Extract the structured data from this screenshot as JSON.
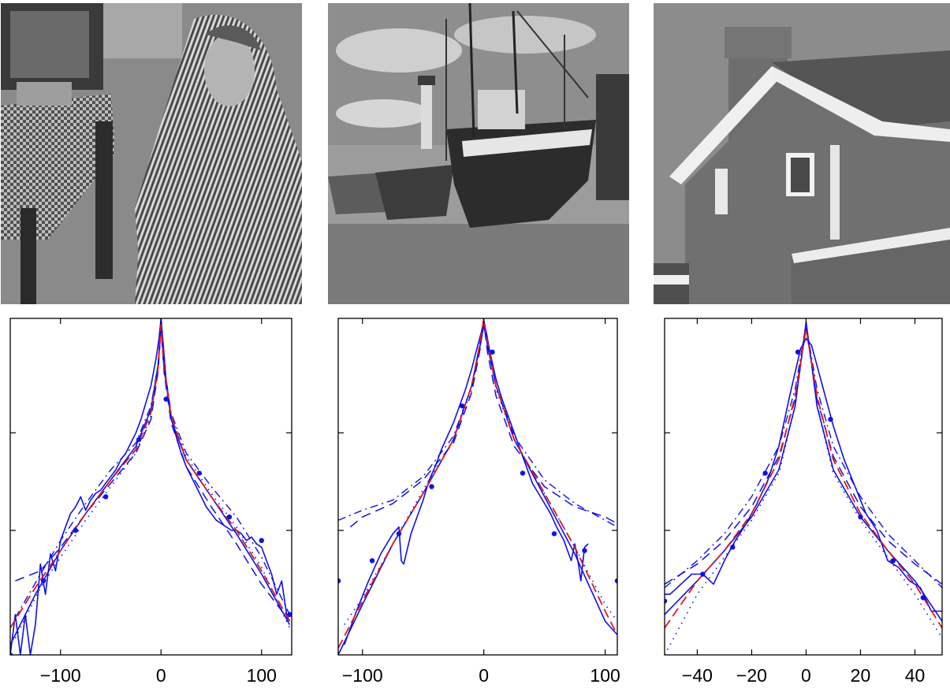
{
  "colors": {
    "solid": "#1010e8",
    "fit": "#e01818",
    "axis": "#000000"
  },
  "images": [
    {
      "subject": "woman seated in a striped scarf and clothing beside a checkered table"
    },
    {
      "subject": "fishing boats beached on a harbor shore with a lighthouse"
    },
    {
      "subject": "corner of a brick house with a chimney and white trim"
    }
  ],
  "chart_data": [
    {
      "type": "line",
      "xlim": [
        -150,
        130
      ],
      "x_ticks": [
        -100,
        0,
        100
      ],
      "x_tick_labels": [
        "−100",
        "0",
        "100"
      ],
      "y_scale": "log",
      "series": [
        {
          "style": "solid",
          "x": [
            -150,
            -145,
            -140,
            -135,
            -130,
            -125,
            -120,
            -115,
            -110,
            -105,
            -100,
            -95,
            -90,
            -85,
            -80,
            -75,
            -70,
            -65,
            -60,
            -55,
            -50,
            -45,
            -40,
            -35,
            -30,
            -25,
            -20,
            -15,
            -10,
            -5,
            -2,
            0,
            2,
            5,
            10,
            15,
            20,
            25,
            30,
            35,
            40,
            45,
            50,
            55,
            60,
            65,
            70,
            75,
            80,
            85,
            90,
            95,
            100,
            105,
            110,
            115,
            120,
            125,
            128
          ],
          "y": [
            0.0,
            0.12,
            0.0,
            0.12,
            0.0,
            0.09,
            0.27,
            0.18,
            0.3,
            0.25,
            0.34,
            0.38,
            0.42,
            0.44,
            0.47,
            0.43,
            0.46,
            0.48,
            0.49,
            0.51,
            0.53,
            0.55,
            0.58,
            0.6,
            0.63,
            0.66,
            0.7,
            0.75,
            0.8,
            0.88,
            0.94,
            1.0,
            0.93,
            0.82,
            0.71,
            0.65,
            0.6,
            0.56,
            0.53,
            0.5,
            0.47,
            0.44,
            0.42,
            0.4,
            0.39,
            0.38,
            0.37,
            0.37,
            0.36,
            0.34,
            0.35,
            0.33,
            0.32,
            0.28,
            0.24,
            0.18,
            0.22,
            0.12,
            0.1
          ]
        },
        {
          "style": "solid",
          "x": [
            -150,
            -125,
            -100,
            -75,
            -50,
            -25,
            -10,
            -3,
            0,
            3,
            10,
            25,
            50,
            75,
            100,
            128
          ],
          "y": [
            0.03,
            0.18,
            0.31,
            0.42,
            0.52,
            0.62,
            0.73,
            0.86,
            0.98,
            0.85,
            0.7,
            0.58,
            0.47,
            0.36,
            0.24,
            0.09
          ]
        },
        {
          "style": "dash",
          "x": [
            -145,
            -120,
            -100,
            -75,
            -50,
            -25,
            -10,
            -3,
            0,
            3,
            10,
            25,
            50,
            75,
            100,
            128
          ],
          "y": [
            0.22,
            0.25,
            0.32,
            0.42,
            0.51,
            0.6,
            0.7,
            0.84,
            0.97,
            0.84,
            0.69,
            0.56,
            0.44,
            0.33,
            0.21,
            0.1
          ]
        },
        {
          "style": "dashdot",
          "x": [
            -145,
            -120,
            -100,
            -75,
            -50,
            -25,
            -10,
            -3,
            0,
            3,
            10,
            25,
            50,
            75,
            100,
            128
          ],
          "y": [
            0.11,
            0.24,
            0.34,
            0.45,
            0.55,
            0.63,
            0.74,
            0.86,
            0.99,
            0.86,
            0.72,
            0.6,
            0.5,
            0.41,
            0.29,
            0.12
          ]
        },
        {
          "style": "dot",
          "x": [
            -145,
            -120,
            -100,
            -75,
            -50,
            -25,
            -10,
            -3,
            0,
            3,
            10,
            25,
            50,
            75,
            100,
            128
          ],
          "y": [
            0.05,
            0.2,
            0.29,
            0.4,
            0.5,
            0.6,
            0.71,
            0.85,
            0.97,
            0.85,
            0.71,
            0.59,
            0.48,
            0.38,
            0.26,
            0.08
          ]
        },
        {
          "style": "fit",
          "x": [
            -150,
            -125,
            -100,
            -75,
            -50,
            -25,
            -10,
            -3,
            0,
            3,
            10,
            25,
            50,
            75,
            100,
            128
          ],
          "y": [
            0.08,
            0.2,
            0.31,
            0.42,
            0.52,
            0.61,
            0.72,
            0.85,
            0.98,
            0.85,
            0.71,
            0.58,
            0.47,
            0.37,
            0.25,
            0.1
          ]
        },
        {
          "style": "markers",
          "x": [
            -150,
            -117,
            -85,
            -55,
            -22,
            5,
            38,
            68,
            100,
            128
          ],
          "y": [
            0.0,
            0.22,
            0.37,
            0.47,
            0.64,
            0.76,
            0.54,
            0.41,
            0.34,
            0.12
          ]
        }
      ]
    },
    {
      "type": "line",
      "xlim": [
        -120,
        110
      ],
      "x_ticks": [
        -100,
        0,
        100
      ],
      "x_tick_labels": [
        "−100",
        "0",
        "100"
      ],
      "y_scale": "log",
      "series": [
        {
          "style": "solid",
          "x": [
            -115,
            -105,
            -95,
            -85,
            -75,
            -70,
            -68,
            -66,
            -60,
            -55,
            -50,
            -45,
            -40,
            -35,
            -30,
            -25,
            -20,
            -15,
            -10,
            -5,
            -2,
            0,
            2,
            5,
            10,
            15,
            20,
            25,
            30,
            35,
            40,
            45,
            50,
            55,
            60,
            63,
            66,
            70,
            72,
            75,
            78,
            80,
            83,
            86
          ],
          "y": [
            0.03,
            0.13,
            0.22,
            0.3,
            0.36,
            0.38,
            0.28,
            0.27,
            0.36,
            0.41,
            0.46,
            0.52,
            0.56,
            0.61,
            0.65,
            0.69,
            0.74,
            0.79,
            0.85,
            0.92,
            0.96,
            0.99,
            0.96,
            0.9,
            0.82,
            0.76,
            0.71,
            0.66,
            0.61,
            0.56,
            0.51,
            0.48,
            0.45,
            0.42,
            0.38,
            0.36,
            0.34,
            0.3,
            0.28,
            0.33,
            0.27,
            0.22,
            0.32,
            0.33
          ]
        },
        {
          "style": "solid",
          "x": [
            -120,
            -100,
            -75,
            -50,
            -25,
            -10,
            -3,
            0,
            3,
            10,
            25,
            50,
            75,
            100,
            110
          ],
          "y": [
            0.0,
            0.15,
            0.33,
            0.48,
            0.64,
            0.8,
            0.92,
            0.98,
            0.92,
            0.8,
            0.64,
            0.47,
            0.3,
            0.1,
            0.06
          ]
        },
        {
          "style": "dash",
          "x": [
            -110,
            -100,
            -75,
            -50,
            -25,
            -10,
            -3,
            0,
            3,
            10,
            25,
            50,
            75,
            100,
            110
          ],
          "y": [
            0.38,
            0.41,
            0.45,
            0.52,
            0.63,
            0.78,
            0.91,
            0.99,
            0.9,
            0.77,
            0.62,
            0.5,
            0.44,
            0.41,
            0.39
          ]
        },
        {
          "style": "dashdot",
          "x": [
            -120,
            -100,
            -75,
            -50,
            -25,
            -10,
            -3,
            0,
            3,
            10,
            25,
            50,
            75,
            100,
            110
          ],
          "y": [
            0.4,
            0.43,
            0.46,
            0.53,
            0.65,
            0.8,
            0.93,
            1.0,
            0.92,
            0.8,
            0.65,
            0.52,
            0.45,
            0.4,
            0.38
          ]
        },
        {
          "style": "dot",
          "x": [
            -115,
            -100,
            -75,
            -50,
            -25,
            -10,
            -3,
            0,
            3,
            10,
            25,
            50,
            75,
            100,
            110
          ],
          "y": [
            0.09,
            0.17,
            0.33,
            0.49,
            0.64,
            0.79,
            0.92,
            0.99,
            0.92,
            0.79,
            0.64,
            0.48,
            0.32,
            0.15,
            0.1
          ]
        },
        {
          "style": "fit",
          "x": [
            -120,
            -100,
            -75,
            -50,
            -25,
            -10,
            -3,
            0,
            3,
            10,
            25,
            50,
            75,
            100,
            110
          ],
          "y": [
            0.02,
            0.16,
            0.33,
            0.48,
            0.64,
            0.8,
            0.93,
            1.0,
            0.93,
            0.8,
            0.64,
            0.48,
            0.32,
            0.13,
            0.06
          ]
        },
        {
          "style": "markers",
          "x": [
            -120,
            -92,
            -70,
            -43,
            -18,
            7,
            32,
            58,
            83,
            110
          ],
          "y": [
            0.22,
            0.28,
            0.36,
            0.5,
            0.74,
            0.9,
            0.54,
            0.36,
            0.31,
            0.22
          ]
        }
      ]
    },
    {
      "type": "line",
      "xlim": [
        -52,
        50
      ],
      "x_ticks": [
        -40,
        -20,
        0,
        20,
        40
      ],
      "x_tick_labels": [
        "−40",
        "−20",
        "0",
        "20",
        "40"
      ],
      "y_scale": "log",
      "series": [
        {
          "style": "solid",
          "x": [
            -52,
            -50,
            -46,
            -42,
            -38,
            -34,
            -30,
            -26,
            -22,
            -18,
            -14,
            -10,
            -6,
            -2,
            0,
            2,
            6,
            10,
            14,
            18,
            22,
            26,
            30,
            34,
            38,
            42,
            46,
            50
          ],
          "y": [
            0.18,
            0.18,
            0.21,
            0.24,
            0.24,
            0.21,
            0.28,
            0.34,
            0.39,
            0.45,
            0.52,
            0.62,
            0.77,
            0.91,
            0.94,
            0.92,
            0.8,
            0.68,
            0.58,
            0.5,
            0.42,
            0.37,
            0.28,
            0.26,
            0.22,
            0.2,
            0.13,
            0.13
          ]
        },
        {
          "style": "solid",
          "x": [
            -52,
            -40,
            -30,
            -20,
            -10,
            -4,
            0,
            4,
            10,
            20,
            30,
            40,
            50
          ],
          "y": [
            0.12,
            0.22,
            0.31,
            0.41,
            0.55,
            0.74,
            0.99,
            0.74,
            0.55,
            0.41,
            0.31,
            0.22,
            0.1
          ]
        },
        {
          "style": "dash",
          "x": [
            -52,
            -40,
            -30,
            -20,
            -10,
            -4,
            0,
            4,
            10,
            20,
            30,
            40,
            50
          ],
          "y": [
            0.21,
            0.27,
            0.34,
            0.44,
            0.59,
            0.76,
            0.97,
            0.76,
            0.59,
            0.44,
            0.34,
            0.27,
            0.21
          ]
        },
        {
          "style": "dashdot",
          "x": [
            -52,
            -40,
            -30,
            -20,
            -10,
            -4,
            0,
            4,
            10,
            20,
            30,
            40,
            50
          ],
          "y": [
            0.2,
            0.28,
            0.36,
            0.47,
            0.62,
            0.79,
            0.98,
            0.79,
            0.62,
            0.47,
            0.36,
            0.28,
            0.2
          ]
        },
        {
          "style": "dot",
          "x": [
            -52,
            -40,
            -30,
            -20,
            -10,
            -4,
            0,
            4,
            10,
            20,
            30,
            40,
            50
          ],
          "y": [
            0.0,
            0.18,
            0.29,
            0.4,
            0.54,
            0.74,
            0.98,
            0.74,
            0.54,
            0.4,
            0.29,
            0.18,
            0.05
          ]
        },
        {
          "style": "fit",
          "x": [
            -52,
            -40,
            -30,
            -20,
            -10,
            -4,
            0,
            4,
            10,
            20,
            30,
            40,
            50
          ],
          "y": [
            0.08,
            0.22,
            0.31,
            0.42,
            0.58,
            0.77,
            0.97,
            0.77,
            0.58,
            0.42,
            0.31,
            0.21,
            0.08
          ]
        },
        {
          "style": "markers",
          "x": [
            -52,
            -38,
            -27,
            -15,
            -3,
            9,
            20,
            32,
            43
          ],
          "y": [
            0.16,
            0.24,
            0.32,
            0.54,
            0.9,
            0.7,
            0.41,
            0.28,
            0.17
          ]
        }
      ]
    }
  ]
}
